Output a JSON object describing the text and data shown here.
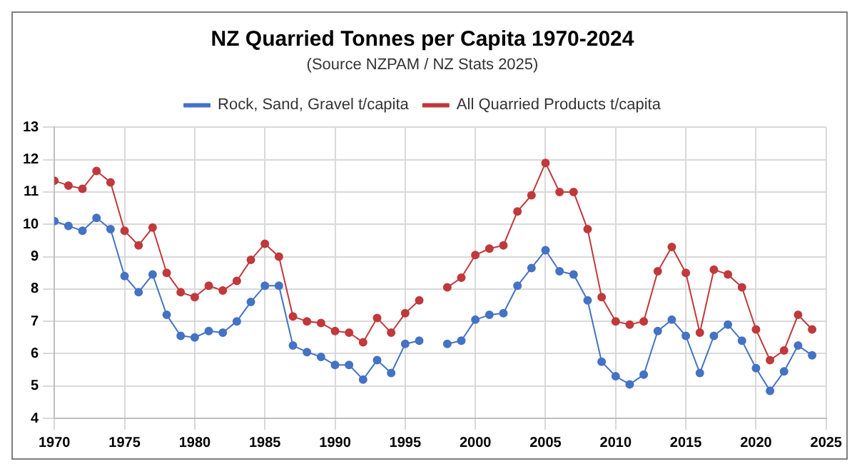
{
  "chart_data": {
    "type": "line",
    "title": "NZ Quarried Tonnes per Capita 1970-2024",
    "subtitle": "(Source NZPAM / NZ Stats 2025)",
    "x": [
      1970,
      1971,
      1972,
      1973,
      1974,
      1975,
      1976,
      1977,
      1978,
      1979,
      1980,
      1981,
      1982,
      1983,
      1984,
      1985,
      1986,
      1987,
      1988,
      1989,
      1990,
      1991,
      1992,
      1993,
      1994,
      1995,
      1996,
      1997,
      1998,
      1999,
      2000,
      2001,
      2002,
      2003,
      2004,
      2005,
      2006,
      2007,
      2008,
      2009,
      2010,
      2011,
      2012,
      2013,
      2014,
      2015,
      2016,
      2017,
      2018,
      2019,
      2020,
      2021,
      2022,
      2023,
      2024
    ],
    "series": [
      {
        "name": "Rock, Sand, Gravel t/capita",
        "color": "#4472c4",
        "values": [
          10.1,
          9.95,
          9.8,
          10.2,
          9.85,
          8.4,
          7.9,
          8.45,
          7.2,
          6.55,
          6.5,
          6.7,
          6.65,
          7.0,
          7.6,
          8.1,
          8.1,
          6.25,
          6.05,
          5.9,
          5.65,
          5.65,
          5.2,
          5.8,
          5.4,
          6.3,
          6.4,
          null,
          6.3,
          6.4,
          7.05,
          7.2,
          7.25,
          8.1,
          8.65,
          9.2,
          8.55,
          8.45,
          7.65,
          5.75,
          5.3,
          5.05,
          5.35,
          6.7,
          7.05,
          6.55,
          5.4,
          6.55,
          6.9,
          6.4,
          5.55,
          4.85,
          5.45,
          6.25,
          5.95
        ]
      },
      {
        "name": "All Quarried Products t/capita",
        "color": "#c0393b",
        "values": [
          11.35,
          11.2,
          11.1,
          11.65,
          11.3,
          9.8,
          9.35,
          9.9,
          8.5,
          7.9,
          7.75,
          8.1,
          7.95,
          8.25,
          8.9,
          9.4,
          9.0,
          7.15,
          7.0,
          6.95,
          6.7,
          6.65,
          6.35,
          7.1,
          6.65,
          7.25,
          7.65,
          null,
          8.05,
          8.35,
          9.05,
          9.25,
          9.35,
          10.4,
          10.9,
          11.9,
          11.0,
          11.0,
          9.85,
          7.75,
          7.0,
          6.9,
          7.0,
          8.55,
          9.3,
          8.5,
          6.65,
          8.6,
          8.45,
          8.05,
          6.75,
          5.8,
          6.1,
          7.2,
          6.75
        ]
      }
    ],
    "xlim": [
      1970,
      2025
    ],
    "xticks": [
      1970,
      1975,
      1980,
      1985,
      1990,
      1995,
      2000,
      2005,
      2010,
      2015,
      2020,
      2025
    ],
    "ylim": [
      4,
      13
    ],
    "yticks": [
      4,
      5,
      6,
      7,
      8,
      9,
      10,
      11,
      12,
      13
    ],
    "grid": true,
    "legend": "top",
    "marker": "circle",
    "line_style": "solid"
  }
}
